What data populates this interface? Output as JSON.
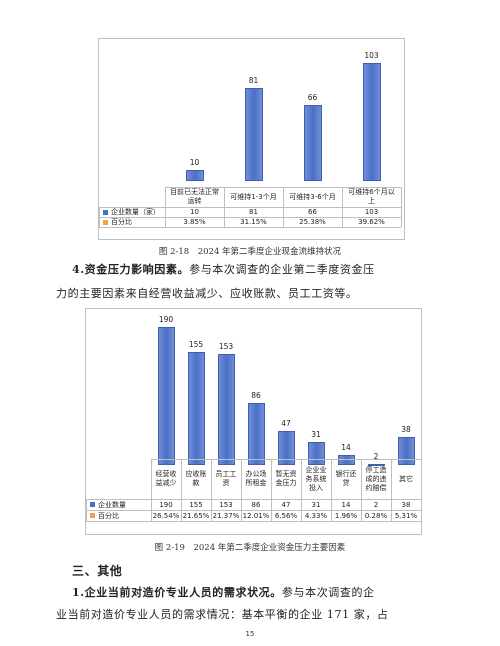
{
  "chart1": {
    "chart_data": {
      "type": "bar",
      "categories": [
        "目前已无法正常运转",
        "可维持1-3个月",
        "可维持3-6个月",
        "可维持6个月以上"
      ],
      "series": [
        {
          "name": "企业数量（家）",
          "values": [
            10,
            81,
            66,
            103
          ]
        },
        {
          "name": "百分比",
          "values": [
            "3.85%",
            "31.15%",
            "25.38%",
            "39.62%"
          ]
        }
      ]
    },
    "value_labels": [
      "10",
      "81",
      "66",
      "103"
    ],
    "cat_labels": [
      "目前已无法正常\n运转",
      "可维持1-3个月",
      "可维持3-6个月",
      "可维持6个月以\n上"
    ],
    "row1_name": "企业数量（家）",
    "row2_name": "百分比",
    "row1": [
      "10",
      "81",
      "66",
      "103"
    ],
    "row2": [
      "3.85%",
      "31.15%",
      "25.38%",
      "39.62%"
    ],
    "colors": {
      "bar": "#4a6fc6",
      "pct": "#f0a050"
    }
  },
  "caption1": "图 2-18　2024 年第二季度企业现金流维持状况",
  "para1_bold": "4.资金压力影响因素。",
  "para1_text": "参与本次调查的企业第二季度资金压",
  "para1_line2": "力的主要因素来自经营收益减少、应收账款、员工工资等。",
  "chart2": {
    "chart_data": {
      "type": "bar",
      "categories": [
        "经营收益减少",
        "应收账款",
        "员工工资",
        "办公场所租金",
        "暂无资金压力",
        "企业业务系统投入",
        "银行还贷",
        "停工造成的违约赔偿",
        "其它"
      ],
      "series": [
        {
          "name": "企业数量",
          "values": [
            190,
            155,
            153,
            86,
            47,
            31,
            14,
            2,
            38
          ]
        },
        {
          "name": "百分比",
          "values": [
            "26.54%",
            "21.65%",
            "21.37%",
            "12.01%",
            "6.56%",
            "4.33%",
            "1.96%",
            "0.28%",
            "5.31%"
          ]
        }
      ]
    },
    "value_labels": [
      "190",
      "155",
      "153",
      "86",
      "47",
      "31",
      "14",
      "2",
      "38"
    ],
    "cat_labels": [
      "经营收\n益减少",
      "应收账\n款",
      "员工工\n资",
      "办公场\n所租金",
      "暂无资\n金压力",
      "企业业\n务系统\n投入",
      "银行还\n贷",
      "停工造\n成的违\n约赔偿",
      "其它"
    ],
    "row1_name": "企业数量",
    "row2_name": "百分比",
    "row1": [
      "190",
      "155",
      "153",
      "86",
      "47",
      "31",
      "14",
      "2",
      "38"
    ],
    "row2": [
      "26.54%",
      "21.65%",
      "21.37%",
      "12.01%",
      "6.56%",
      "4.33%",
      "1.96%",
      "0.28%",
      "5.31%"
    ],
    "colors": {
      "bar": "#4a6fc6",
      "pct": "#f0a050"
    }
  },
  "caption2": "图 2-19　2024 年第二季度企业资金压力主要因素",
  "section_title": "三、其他",
  "para2_bold": "1.企业当前对造价专业人员的需求状况。",
  "para2_text": "参与本次调查的企",
  "para2_line2": "业当前对造价专业人员的需求情况：基本平衡的企业 171 家，占",
  "page_number": "15"
}
